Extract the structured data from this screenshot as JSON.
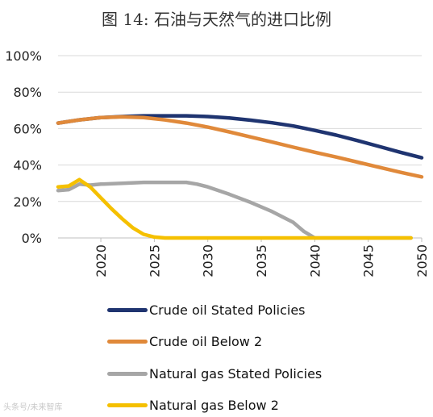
{
  "title": "图 14: 石油与天然气的进口比例",
  "watermark": "头条号/未来智库",
  "chart_data": {
    "type": "line",
    "title": "图 14: 石油与天然气的进口比例",
    "xlabel": "",
    "ylabel": "",
    "xlim": [
      2016,
      2050
    ],
    "ylim": [
      0,
      100
    ],
    "x_ticks": [
      2020,
      2025,
      2030,
      2035,
      2040,
      2045,
      2050
    ],
    "y_ticks": [
      0,
      20,
      40,
      60,
      80,
      100
    ],
    "y_tick_format": "%",
    "grid": "horizontal",
    "legend_position": "bottom",
    "series": [
      {
        "name": "Crude oil Stated Policies",
        "color": "#1f3470",
        "x": [
          2016,
          2018,
          2020,
          2022,
          2024,
          2026,
          2028,
          2030,
          2032,
          2034,
          2036,
          2038,
          2040,
          2042,
          2044,
          2046,
          2048,
          2050
        ],
        "values": [
          63,
          64.8,
          66,
          66.6,
          67,
          67,
          67,
          66.6,
          65.8,
          64.6,
          63.2,
          61.4,
          59,
          56.4,
          53.4,
          50.2,
          47,
          44
        ]
      },
      {
        "name": "Crude oil Below 2",
        "color": "#e0893a",
        "x": [
          2016,
          2018,
          2020,
          2022,
          2024,
          2026,
          2028,
          2030,
          2032,
          2034,
          2036,
          2038,
          2040,
          2042,
          2044,
          2046,
          2048,
          2050
        ],
        "values": [
          63,
          64.8,
          66,
          66.4,
          66,
          64.8,
          63,
          60.8,
          58.2,
          55.4,
          52.6,
          49.8,
          47,
          44.4,
          41.6,
          38.8,
          36,
          33.5
        ]
      },
      {
        "name": "Natural gas Stated Policies",
        "color": "#a6a6a6",
        "x": [
          2016,
          2017,
          2018,
          2019,
          2020,
          2022,
          2024,
          2026,
          2028,
          2029,
          2030,
          2032,
          2034,
          2036,
          2038,
          2039,
          2040,
          2042,
          2044,
          2046,
          2048,
          2049
        ],
        "values": [
          26,
          26.5,
          29.5,
          29,
          29.5,
          30,
          30.5,
          30.5,
          30.5,
          29.5,
          28,
          24,
          19.5,
          14.5,
          8.5,
          3.5,
          0,
          0,
          0,
          0,
          0,
          0
        ]
      },
      {
        "name": "Natural gas Below 2",
        "color": "#f5c000",
        "x": [
          2016,
          2017,
          2018,
          2019,
          2020,
          2021,
          2022,
          2023,
          2024,
          2025,
          2026,
          2028,
          2030,
          2035,
          2040,
          2045,
          2049
        ],
        "values": [
          28,
          28.5,
          32,
          28,
          22,
          16,
          10.5,
          5.5,
          2,
          0.5,
          0,
          0,
          0,
          0,
          0,
          0,
          0
        ]
      }
    ]
  }
}
